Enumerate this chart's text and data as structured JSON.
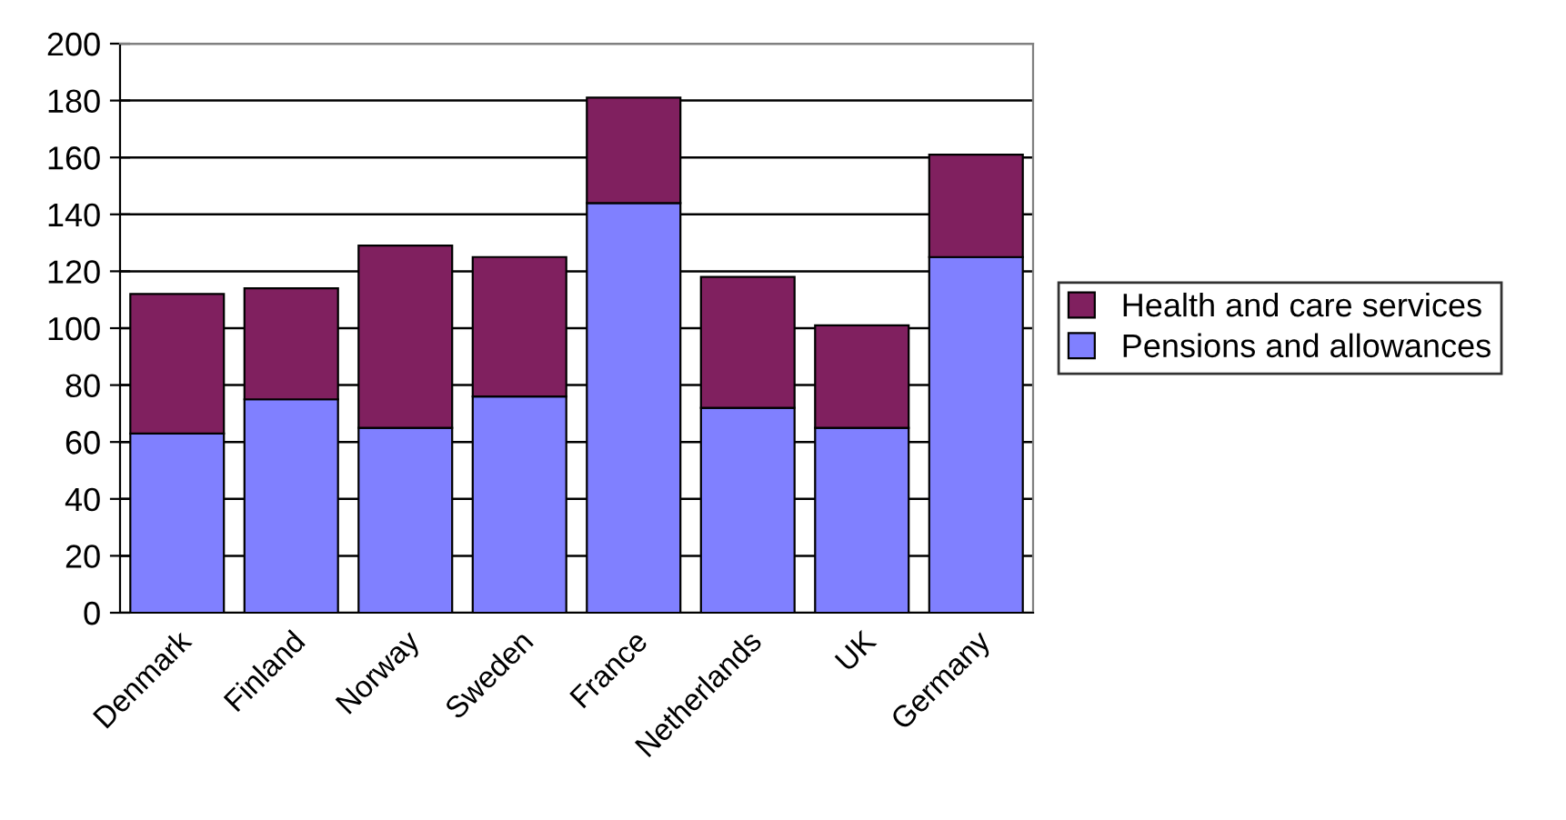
{
  "chart_data": {
    "type": "bar",
    "stacked": true,
    "categories": [
      "Denmark",
      "Finland",
      "Norway",
      "Sweden",
      "France",
      "Netherlands",
      "UK",
      "Germany"
    ],
    "series": [
      {
        "name": "Pensions and allowances",
        "color": "#8080ff",
        "values": [
          63,
          75,
          65,
          76,
          144,
          72,
          65,
          125
        ]
      },
      {
        "name": "Health and care services",
        "color": "#80205f",
        "values": [
          49,
          39,
          64,
          49,
          37,
          46,
          36,
          36
        ]
      }
    ],
    "ylim": [
      0,
      200
    ],
    "yticks": [
      0,
      20,
      40,
      60,
      80,
      100,
      120,
      140,
      160,
      180,
      200
    ],
    "grid": "y",
    "legend": "right"
  }
}
